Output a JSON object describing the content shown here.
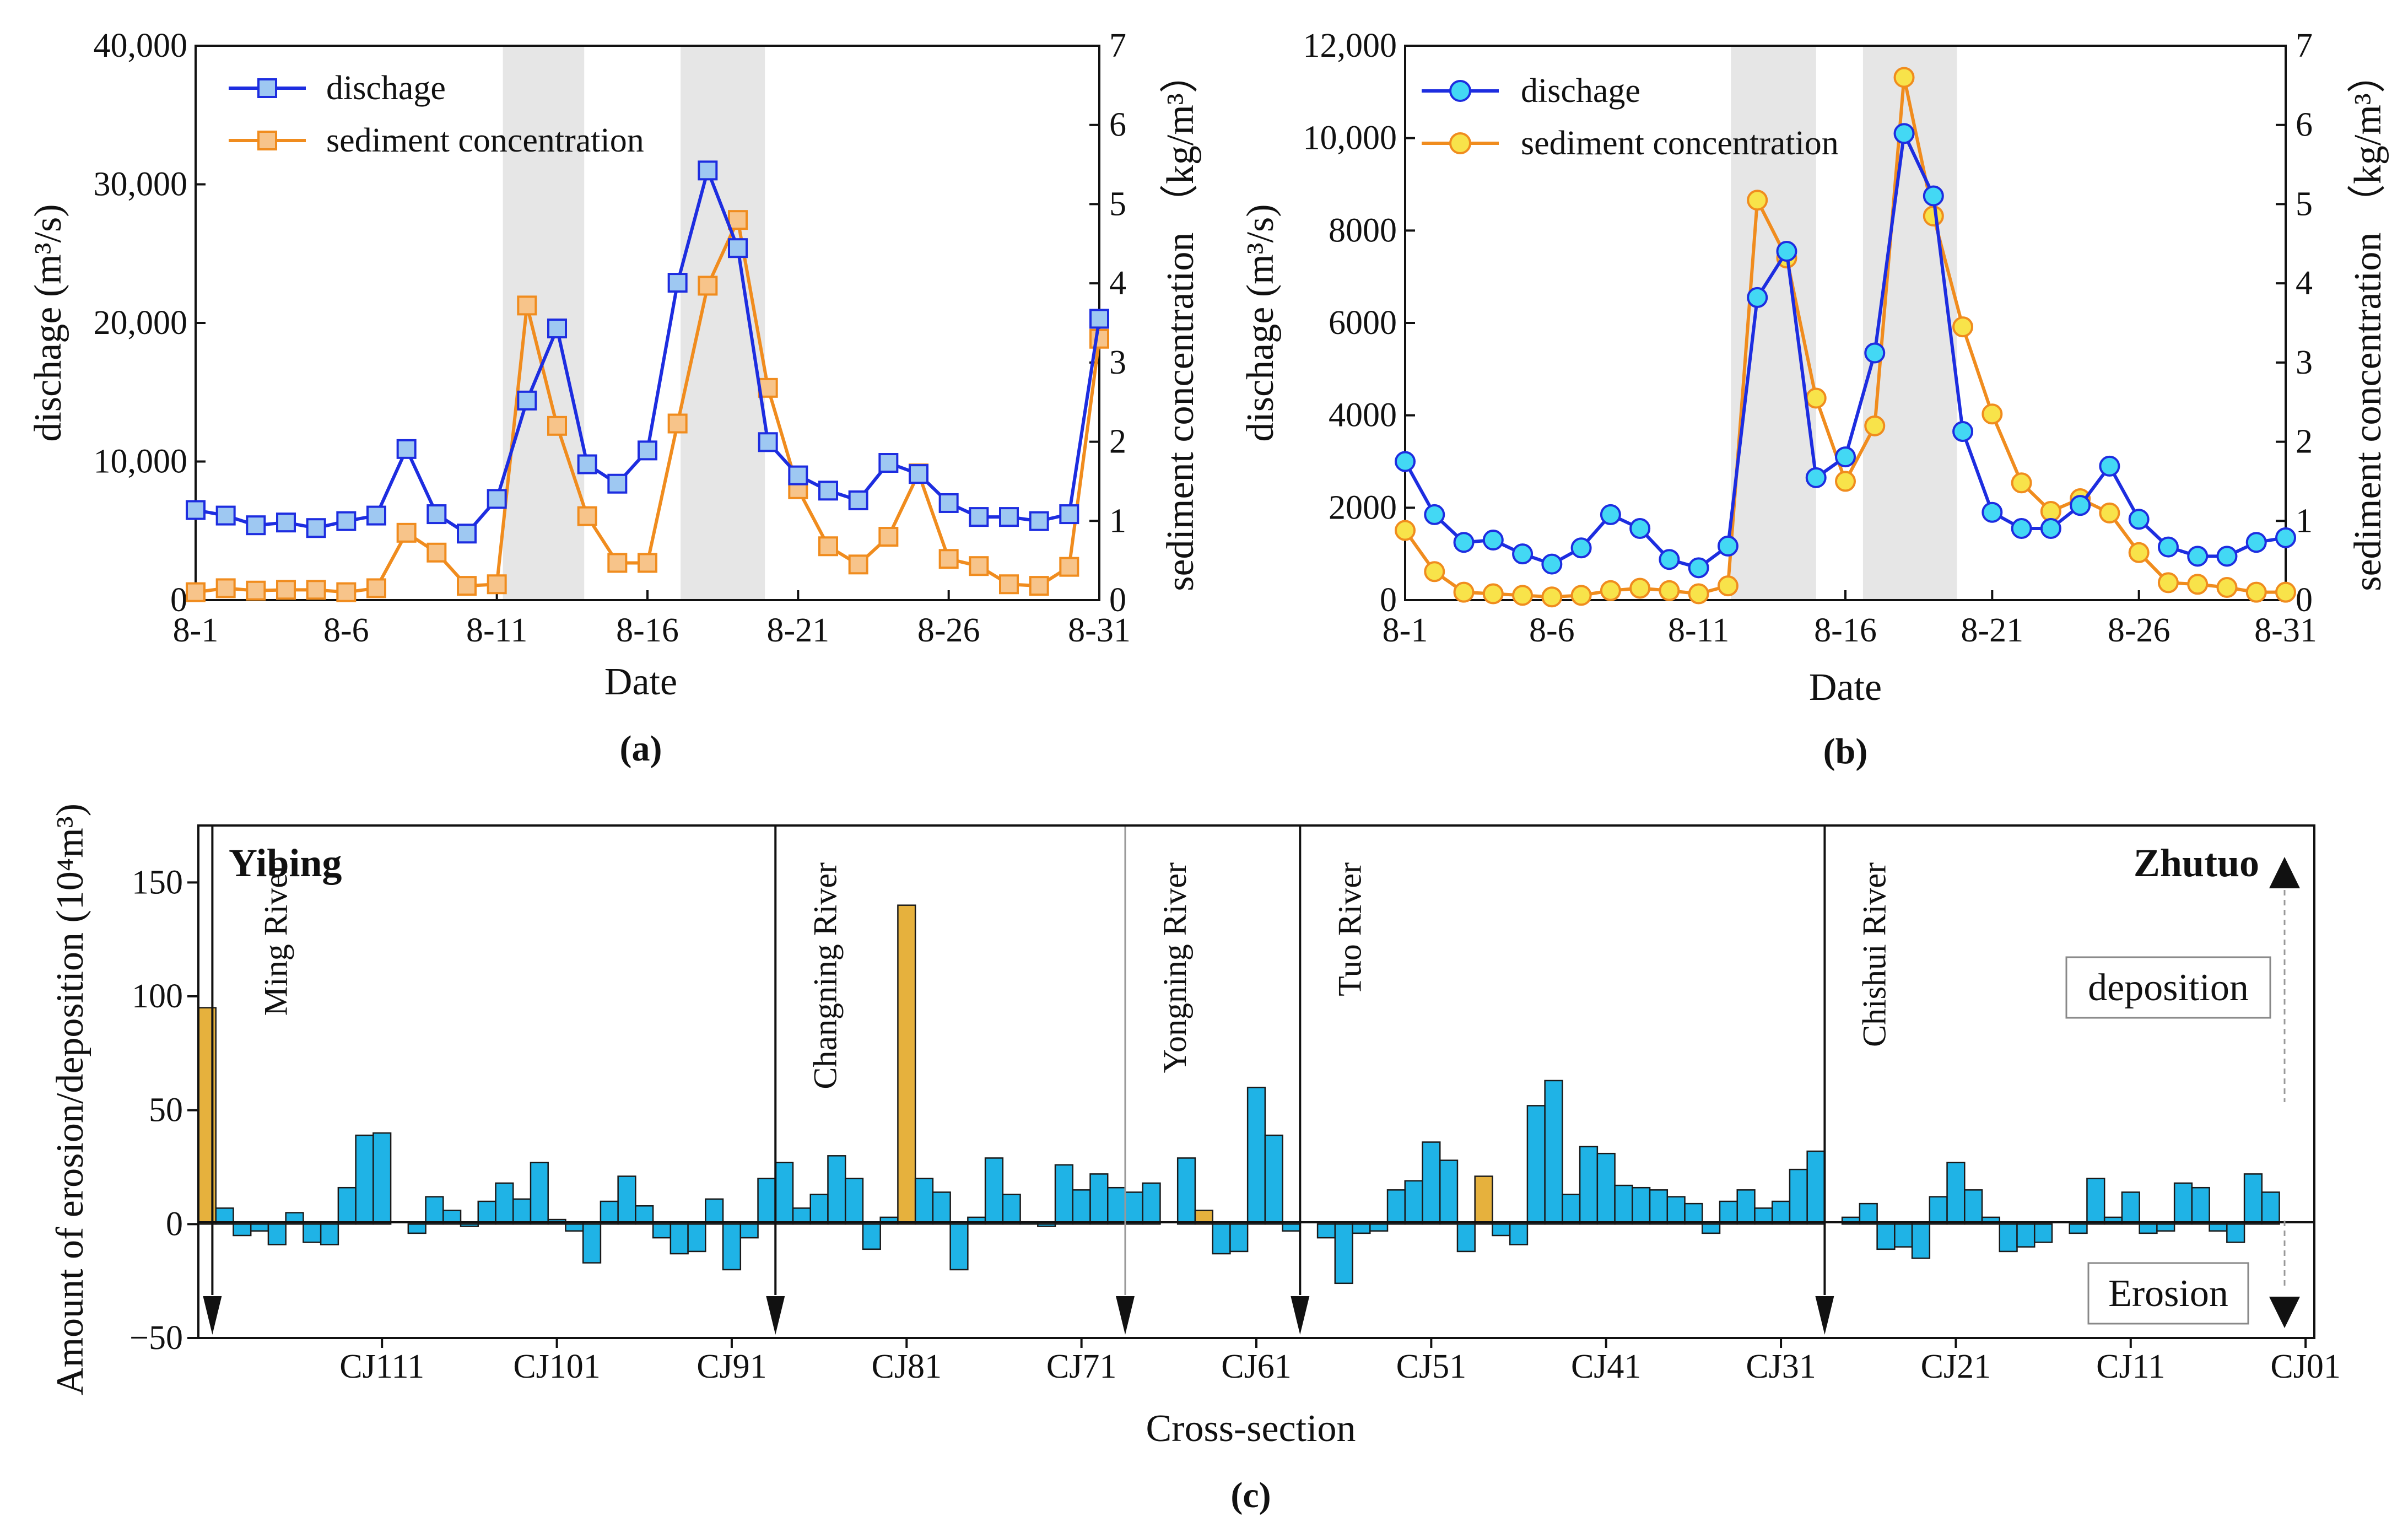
{
  "colors": {
    "discharge": "#1d2de0",
    "discharge_fill_a": "#9ec8f2",
    "discharge_fill_b": "#43d8f4",
    "sediment": "#f08c1e",
    "sediment_fill_a": "#f7c48a",
    "sediment_fill_b": "#f8e34a",
    "erosion_bar": "#1fb3e6",
    "deposition_bar": "#e6b13d",
    "shade": "#e6e6e6"
  },
  "chart_data": [
    {
      "id": "a",
      "type": "line",
      "caption": "(a)",
      "xlabel": "Date",
      "ylabel_left": "dischage (m³/s)",
      "ylabel_right": "sediment concentration （kg/m³）",
      "x": [
        1,
        2,
        3,
        4,
        5,
        6,
        7,
        8,
        9,
        10,
        11,
        12,
        13,
        14,
        15,
        16,
        17,
        18,
        19,
        20,
        21,
        22,
        23,
        24,
        25,
        26,
        27,
        28,
        29,
        30,
        31
      ],
      "xticks": [
        1,
        6,
        11,
        16,
        21,
        26,
        31
      ],
      "xtick_labels": [
        "8-1",
        "8-6",
        "8-11",
        "8-16",
        "8-21",
        "8-26",
        "8-31"
      ],
      "xlim": [
        1,
        31
      ],
      "ylim_left": [
        0,
        40000
      ],
      "yticks_left": [
        0,
        10000,
        20000,
        30000,
        40000
      ],
      "ytick_labels_left": [
        "0",
        "10,000",
        "20,000",
        "30,000",
        "40,000"
      ],
      "ylim_right": [
        0,
        7
      ],
      "yticks_right": [
        0,
        1,
        2,
        3,
        4,
        5,
        6,
        7
      ],
      "ytick_labels_right": [
        "0",
        "1",
        "2",
        "3",
        "4",
        "5",
        "6",
        "7"
      ],
      "shaded_x_ranges": [
        [
          11.2,
          13.9
        ],
        [
          17.1,
          19.9
        ]
      ],
      "marker": "square",
      "legend": [
        "dischage",
        "sediment concentration"
      ],
      "series": [
        {
          "name": "dischage",
          "axis": "left",
          "values": [
            6500,
            6100,
            5400,
            5600,
            5200,
            5700,
            6100,
            10900,
            6200,
            4800,
            7300,
            14400,
            19600,
            9800,
            8400,
            10800,
            22900,
            31000,
            25400,
            11400,
            9000,
            7900,
            7200,
            9900,
            9100,
            7000,
            6000,
            6000,
            5700,
            6200,
            20300
          ]
        },
        {
          "name": "sediment concentration",
          "axis": "right",
          "values": [
            0.1,
            0.15,
            0.12,
            0.13,
            0.13,
            0.1,
            0.15,
            0.85,
            0.6,
            0.18,
            0.2,
            3.72,
            2.2,
            1.06,
            0.47,
            0.47,
            2.23,
            3.97,
            4.8,
            2.68,
            1.4,
            0.68,
            0.45,
            0.8,
            1.6,
            0.52,
            0.43,
            0.2,
            0.18,
            0.42,
            3.3
          ]
        }
      ]
    },
    {
      "id": "b",
      "type": "line",
      "caption": "(b)",
      "xlabel": "Date",
      "ylabel_left": "dischage (m³/s)",
      "ylabel_right": "sediment concentration （kg/m³）",
      "x": [
        1,
        2,
        3,
        4,
        5,
        6,
        7,
        8,
        9,
        10,
        11,
        12,
        13,
        14,
        15,
        16,
        17,
        18,
        19,
        20,
        21,
        22,
        23,
        24,
        25,
        26,
        27,
        28,
        29,
        30,
        31
      ],
      "xticks": [
        1,
        6,
        11,
        16,
        21,
        26,
        31
      ],
      "xtick_labels": [
        "8-1",
        "8-6",
        "8-11",
        "8-16",
        "8-21",
        "8-26",
        "8-31"
      ],
      "xlim": [
        1,
        31
      ],
      "ylim_left": [
        0,
        12000
      ],
      "yticks_left": [
        0,
        2000,
        4000,
        6000,
        8000,
        10000,
        12000
      ],
      "ytick_labels_left": [
        "0",
        "2000",
        "4000",
        "6000",
        "8000",
        "10,000",
        "12,000"
      ],
      "ylim_right": [
        0,
        7
      ],
      "yticks_right": [
        0,
        1,
        2,
        3,
        4,
        5,
        6,
        7
      ],
      "ytick_labels_right": [
        "0",
        "1",
        "2",
        "3",
        "4",
        "5",
        "6",
        "7"
      ],
      "shaded_x_ranges": [
        [
          12.1,
          15.0
        ],
        [
          16.6,
          19.8
        ]
      ],
      "marker": "circle",
      "legend": [
        "dischage",
        "sediment concentration"
      ],
      "series": [
        {
          "name": "dischage",
          "axis": "left",
          "values": [
            3000,
            1850,
            1250,
            1300,
            1000,
            780,
            1130,
            1850,
            1550,
            880,
            700,
            1170,
            6550,
            7550,
            2650,
            3100,
            5350,
            10100,
            8750,
            3650,
            1900,
            1550,
            1550,
            2050,
            2900,
            1750,
            1150,
            950,
            950,
            1250,
            1350
          ]
        },
        {
          "name": "sediment concentration",
          "axis": "right",
          "values": [
            0.88,
            0.36,
            0.1,
            0.08,
            0.06,
            0.04,
            0.06,
            0.12,
            0.15,
            0.12,
            0.08,
            0.18,
            5.05,
            4.32,
            2.55,
            1.5,
            2.2,
            6.6,
            4.85,
            3.45,
            2.35,
            1.48,
            1.12,
            1.28,
            1.1,
            0.6,
            0.22,
            0.2,
            0.16,
            0.1,
            0.1
          ]
        }
      ]
    },
    {
      "id": "c",
      "type": "bar",
      "caption": "(c)",
      "xlabel": "Cross-section",
      "ylabel": "Amount of erosion/deposition (10⁴m³)",
      "ylim": [
        -50,
        175
      ],
      "yticks": [
        -50,
        0,
        50,
        100,
        150
      ],
      "ytick_labels": [
        "−50",
        "0",
        "50",
        "100",
        "150"
      ],
      "xtick_labels": [
        "CJ111",
        "CJ101",
        "CJ91",
        "CJ81",
        "CJ71",
        "CJ61",
        "CJ51",
        "CJ41",
        "CJ31",
        "CJ21",
        "CJ11",
        "CJ01"
      ],
      "xtick_positions": [
        10,
        20,
        30,
        40,
        50,
        60,
        70,
        80,
        90,
        100,
        110,
        120
      ],
      "xlim": [
        -0.5,
        120.5
      ],
      "stations": [
        {
          "name": "Yibing"
        },
        {
          "name": "Zhutuo"
        }
      ],
      "tributaries": [
        {
          "name": "Ming River",
          "x": 0.3
        },
        {
          "name": "Changning River",
          "x": 32.5
        },
        {
          "name": "Yongning River",
          "x": 52.5
        },
        {
          "name": "Tuo River",
          "x": 62.5
        },
        {
          "name": "Chishui River",
          "x": 92.5
        }
      ],
      "labels": {
        "deposition": "deposition",
        "erosion": "Erosion"
      },
      "deposition_highlight_indices": [
        0,
        40,
        57,
        73
      ],
      "values": [
        95,
        7,
        -5,
        -3,
        -9,
        5,
        -8,
        -9,
        16,
        39,
        40,
        0,
        -4,
        12,
        6,
        -1,
        10,
        18,
        11,
        27,
        2,
        -3,
        -17,
        10,
        21,
        8,
        -6,
        -13,
        -12,
        11,
        -20,
        -6,
        20,
        27,
        7,
        13,
        30,
        20,
        -11,
        3,
        140,
        20,
        14,
        -20,
        3,
        29,
        13,
        1,
        -1,
        26,
        15,
        22,
        16,
        14,
        18,
        0,
        29,
        6,
        -13,
        -12,
        60,
        39,
        -3,
        0,
        -6,
        -26,
        -4,
        -3,
        15,
        19,
        36,
        28,
        -12,
        21,
        -5,
        -9,
        52,
        63,
        13,
        34,
        31,
        17,
        16,
        15,
        12,
        9,
        -4,
        10,
        15,
        7,
        10,
        24,
        32,
        0,
        3,
        9,
        -11,
        -10,
        -15,
        12,
        27,
        15,
        3,
        -12,
        -10,
        -8,
        0,
        -4,
        20,
        3,
        14,
        -4,
        -3,
        18,
        16,
        -3,
        -8,
        22,
        14
      ]
    }
  ]
}
